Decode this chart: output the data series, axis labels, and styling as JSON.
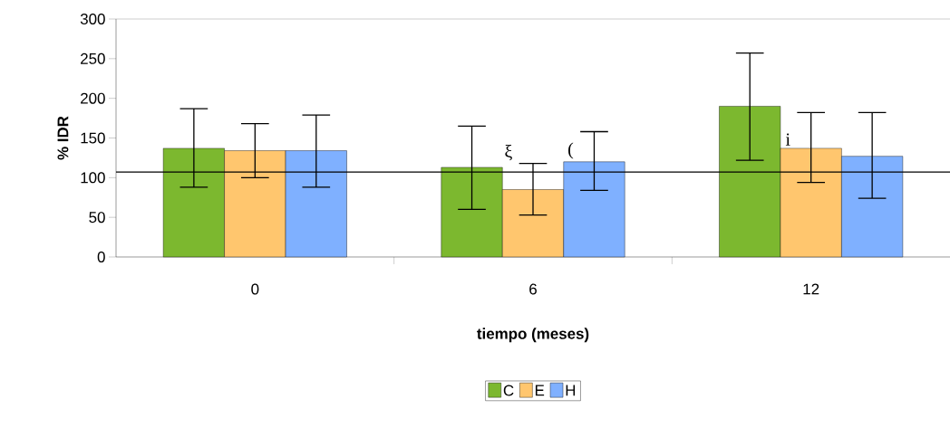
{
  "chart_data": {
    "type": "bar",
    "xlabel": "tiempo (meses)",
    "ylabel": "% IDR",
    "categories": [
      "0",
      "6",
      "12"
    ],
    "series": [
      {
        "name": "C",
        "color": "#7cb82f",
        "values": [
          137,
          113,
          190
        ],
        "errors": [
          [
            88,
            187
          ],
          [
            60,
            165
          ],
          [
            122,
            257
          ]
        ]
      },
      {
        "name": "E",
        "color": "#ffc66e",
        "values": [
          134,
          85,
          137
        ],
        "errors": [
          [
            100,
            168
          ],
          [
            53,
            118
          ],
          [
            94,
            182
          ]
        ]
      },
      {
        "name": "H",
        "color": "#7fb0ff",
        "values": [
          134,
          120,
          127
        ],
        "errors": [
          [
            88,
            179
          ],
          [
            84,
            158
          ],
          [
            74,
            182
          ]
        ]
      }
    ],
    "ylim": [
      0,
      300
    ],
    "yticks": [
      0,
      50,
      100,
      150,
      200,
      250,
      300
    ],
    "ref_lines": [
      {
        "axis": "y",
        "value": 107
      }
    ],
    "annotations": [
      {
        "text": "ξ",
        "x": "6",
        "y": 118
      },
      {
        "text": "(",
        "x": "6",
        "y": 120
      },
      {
        "text": "i",
        "x": "12",
        "y": 137
      }
    ],
    "legend": "bottom"
  }
}
